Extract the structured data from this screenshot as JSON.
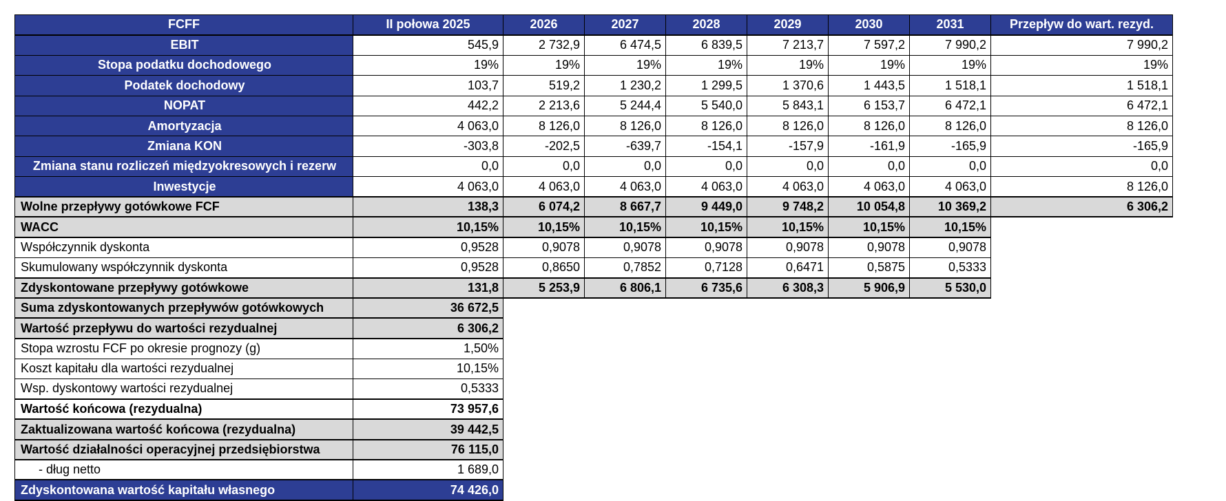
{
  "colors": {
    "header_blue": "#2d3e94",
    "band_gray": "#d9d9d9",
    "border": "#000000"
  },
  "table": {
    "header": {
      "label": "FCFF",
      "columns": [
        "II połowa 2025",
        "2026",
        "2027",
        "2028",
        "2029",
        "2030",
        "2031",
        "Przepływ do wart. rezyd."
      ]
    },
    "rows": [
      {
        "style": "blue",
        "label": "EBIT",
        "values": [
          "545,9",
          "2 732,9",
          "6 474,5",
          "6 839,5",
          "7 213,7",
          "7 597,2",
          "7 990,2",
          "7 990,2"
        ]
      },
      {
        "style": "blue",
        "label": "Stopa podatku dochodowego",
        "values": [
          "19%",
          "19%",
          "19%",
          "19%",
          "19%",
          "19%",
          "19%",
          "19%"
        ]
      },
      {
        "style": "blue",
        "label": "Podatek dochodowy",
        "values": [
          "103,7",
          "519,2",
          "1 230,2",
          "1 299,5",
          "1 370,6",
          "1 443,5",
          "1 518,1",
          "1 518,1"
        ]
      },
      {
        "style": "blue",
        "label": "NOPAT",
        "values": [
          "442,2",
          "2 213,6",
          "5 244,4",
          "5 540,0",
          "5 843,1",
          "6 153,7",
          "6 472,1",
          "6 472,1"
        ]
      },
      {
        "style": "blue",
        "label": "Amortyzacja",
        "values": [
          "4 063,0",
          "8 126,0",
          "8 126,0",
          "8 126,0",
          "8 126,0",
          "8 126,0",
          "8 126,0",
          "8 126,0"
        ]
      },
      {
        "style": "blue",
        "label": "Zmiana KON",
        "values": [
          "-303,8",
          "-202,5",
          "-639,7",
          "-154,1",
          "-157,9",
          "-161,9",
          "-165,9",
          "-165,9"
        ]
      },
      {
        "style": "blue",
        "label": "Zmiana stanu rozliczeń międzyokresowych i rezerw",
        "values": [
          "0,0",
          "0,0",
          "0,0",
          "0,0",
          "0,0",
          "0,0",
          "0,0",
          "0,0"
        ]
      },
      {
        "style": "blue",
        "label": "Inwestycje",
        "values": [
          "4 063,0",
          "4 063,0",
          "4 063,0",
          "4 063,0",
          "4 063,0",
          "4 063,0",
          "4 063,0",
          "8 126,0"
        ]
      },
      {
        "style": "gray",
        "label": "Wolne przepływy gotówkowe FCF",
        "values": [
          "138,3",
          "6 074,2",
          "8 667,7",
          "9 449,0",
          "9 748,2",
          "10 054,8",
          "10 369,2",
          "6 306,2"
        ]
      },
      {
        "style": "gray",
        "label": "WACC",
        "values": [
          "10,15%",
          "10,15%",
          "10,15%",
          "10,15%",
          "10,15%",
          "10,15%",
          "10,15%"
        ]
      },
      {
        "style": "plain",
        "label": "Współczynnik dyskonta",
        "values": [
          "0,9528",
          "0,9078",
          "0,9078",
          "0,9078",
          "0,9078",
          "0,9078",
          "0,9078"
        ]
      },
      {
        "style": "plain",
        "label": "Skumulowany współczynnik dyskonta",
        "values": [
          "0,9528",
          "0,8650",
          "0,7852",
          "0,7128",
          "0,6471",
          "0,5875",
          "0,5333"
        ]
      },
      {
        "style": "gray",
        "label": "Zdyskontowane przepływy gotówkowe",
        "values": [
          "131,8",
          "5 253,9",
          "6 806,1",
          "6 735,6",
          "6 308,3",
          "5 906,9",
          "5 530,0"
        ]
      },
      {
        "style": "gray",
        "label": "Suma zdyskontowanych przepływów gotówkowych",
        "values": [
          "36 672,5"
        ]
      },
      {
        "style": "gray",
        "label": "Wartość przepływu do wartości rezydualnej",
        "values": [
          "6 306,2"
        ]
      },
      {
        "style": "plain",
        "label": "Stopa wzrostu FCF po okresie prognozy (g)",
        "values": [
          "1,50%"
        ]
      },
      {
        "style": "plain",
        "label": "Koszt kapitału dla wartości rezydualnej",
        "values": [
          "10,15%"
        ]
      },
      {
        "style": "plain",
        "label": "Wsp. dyskontowy wartości rezydualnej",
        "values": [
          "0,5333"
        ]
      },
      {
        "style": "bold",
        "label": "Wartość końcowa (rezydualna)",
        "values": [
          "73 957,6"
        ]
      },
      {
        "style": "gray",
        "label": "Zaktualizowana wartość końcowa (rezydualna)",
        "values": [
          "39 442,5"
        ]
      },
      {
        "style": "gray",
        "label": "Wartość działalności operacyjnej przedsiębiorstwa",
        "values": [
          "76 115,0"
        ]
      },
      {
        "style": "plain",
        "label": "- dług netto",
        "indent": true,
        "values": [
          "1 689,0"
        ]
      },
      {
        "style": "final",
        "label": "Zdyskontowana wartość kapitału własnego",
        "values": [
          "74 426,0"
        ]
      }
    ]
  }
}
